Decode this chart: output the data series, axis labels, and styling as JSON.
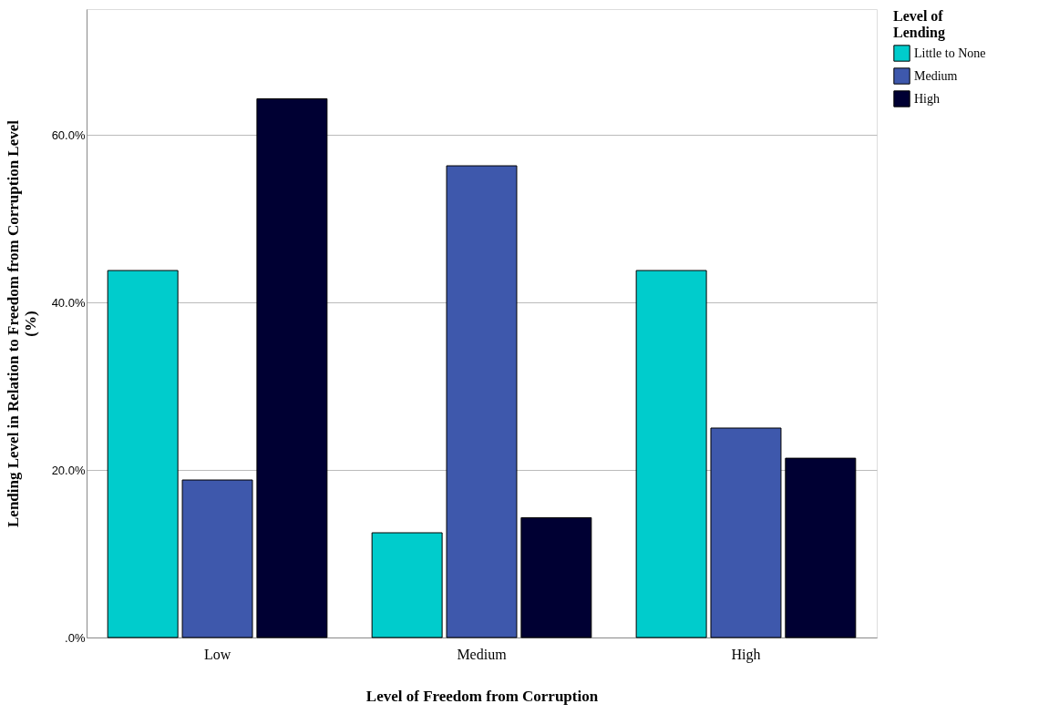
{
  "chart_data": {
    "type": "bar",
    "xlabel": "Level of Freedom from Corruption",
    "ylabel": "Lending Level in Relation to Freedom from Corruption Level (%)",
    "legend_title": "Level of Lending",
    "categories": [
      "Low",
      "Medium",
      "High"
    ],
    "series": [
      {
        "name": "Little to None",
        "color": "#00cccc",
        "values": [
          43.8,
          12.5,
          43.8
        ]
      },
      {
        "name": "Medium",
        "color": "#3e58ac",
        "values": [
          18.8,
          56.3,
          25.0
        ]
      },
      {
        "name": "High",
        "color": "#000033",
        "values": [
          64.3,
          14.3,
          21.4
        ]
      }
    ],
    "ylim": [
      0,
      75
    ],
    "yticks": [
      {
        "value": 0,
        "label": ".0%"
      },
      {
        "value": 20,
        "label": "20.0%"
      },
      {
        "value": 40,
        "label": "40.0%"
      },
      {
        "value": 60,
        "label": "60.0%"
      }
    ],
    "grid": "y",
    "legend": "top right"
  }
}
